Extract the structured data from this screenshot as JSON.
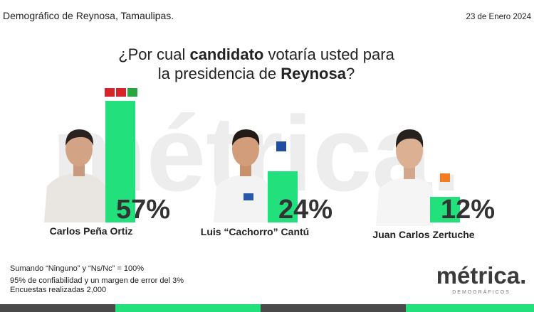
{
  "header": {
    "source": "Demográfico de Reynosa, Tamaulipas.",
    "date": "23 de Enero 2024"
  },
  "chart_data": {
    "type": "bar",
    "title_lines": [
      [
        "¿Por cual ",
        "candidato",
        " votaría usted para"
      ],
      [
        "la presidencia de ",
        "Reynosa",
        "?"
      ]
    ],
    "watermark": "métrica.",
    "categories": [
      "Carlos Peña Ortiz",
      "Luis “Cachorro” Cantú",
      "Juan Carlos Zertuche"
    ],
    "values": [
      57,
      24,
      12
    ],
    "value_labels": [
      "57%",
      "24%",
      "12%"
    ],
    "color": "#22e07c"
  },
  "footer": {
    "notes": [
      "Sumando “Ninguno” y “Ns/Nc” = 100%",
      "95% de confiabilidad y un margen de error del 3%",
      "Encuestas realizadas 2,000"
    ],
    "logo": "métrica.",
    "tagline": "DEMOGRÁFICOS"
  }
}
